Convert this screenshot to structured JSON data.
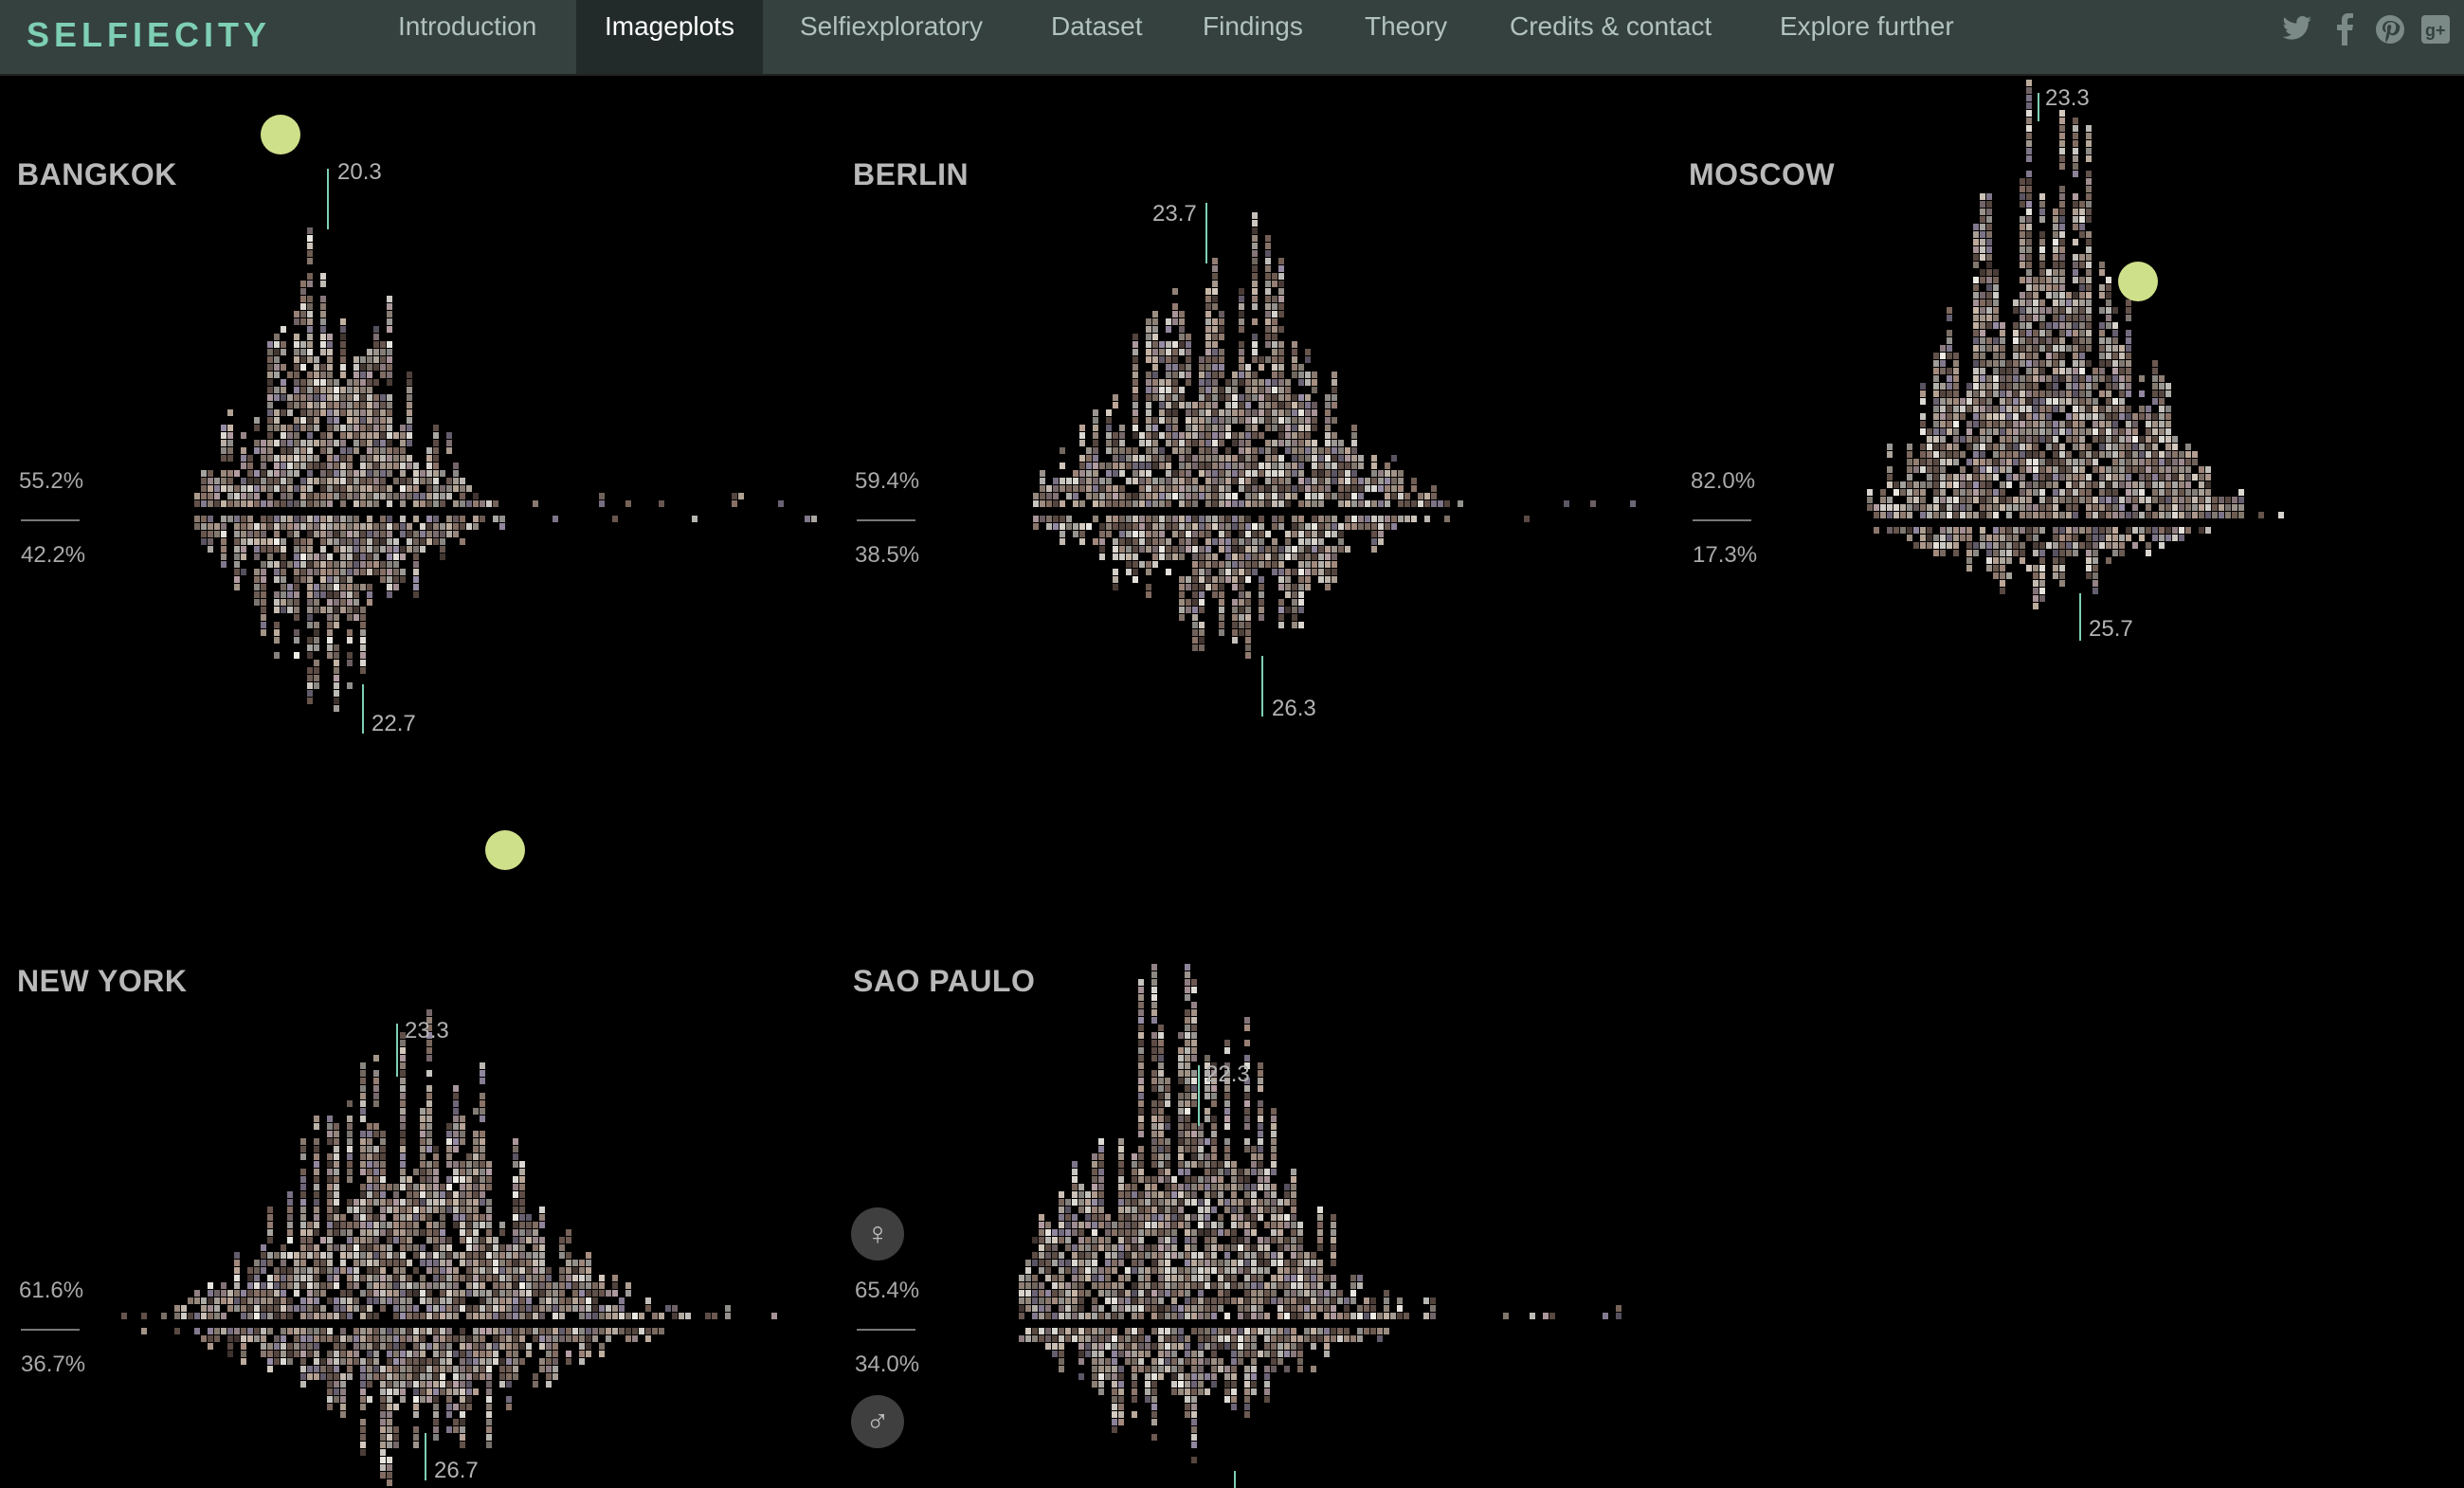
{
  "nav": {
    "logo": "SELFIECITY",
    "tabs": [
      "Introduction",
      "Imageplots",
      "Selfiexploratory",
      "Dataset",
      "Findings",
      "Theory",
      "Credits & contact",
      "Explore further"
    ],
    "active": "Imageplots",
    "social": [
      "twitter-icon",
      "facebook-icon",
      "pinterest-icon",
      "google-plus-icon"
    ]
  },
  "gender_icons": {
    "female": "♀",
    "male": "♂"
  },
  "colors": {
    "accent": "#7ecfb3",
    "dot": "#cfe08a",
    "nav_bg": "#34413f"
  },
  "cities": [
    {
      "name": "BANGKOK",
      "female_pct": "55.2%",
      "male_pct": "42.2%",
      "female_avg_age": "20.3",
      "male_avg_age": "22.7"
    },
    {
      "name": "BERLIN",
      "female_pct": "59.4%",
      "male_pct": "38.5%",
      "female_avg_age": "23.7",
      "male_avg_age": "26.3"
    },
    {
      "name": "MOSCOW",
      "female_pct": "82.0%",
      "male_pct": "17.3%",
      "female_avg_age": "23.3",
      "male_avg_age": "25.7"
    },
    {
      "name": "NEW YORK",
      "female_pct": "61.6%",
      "male_pct": "36.7%",
      "female_avg_age": "23.3",
      "male_avg_age": "26.7"
    },
    {
      "name": "SAO PAULO",
      "female_pct": "65.4%",
      "male_pct": "34.0%",
      "female_avg_age": "22.3",
      "male_avg_age": ""
    }
  ]
}
